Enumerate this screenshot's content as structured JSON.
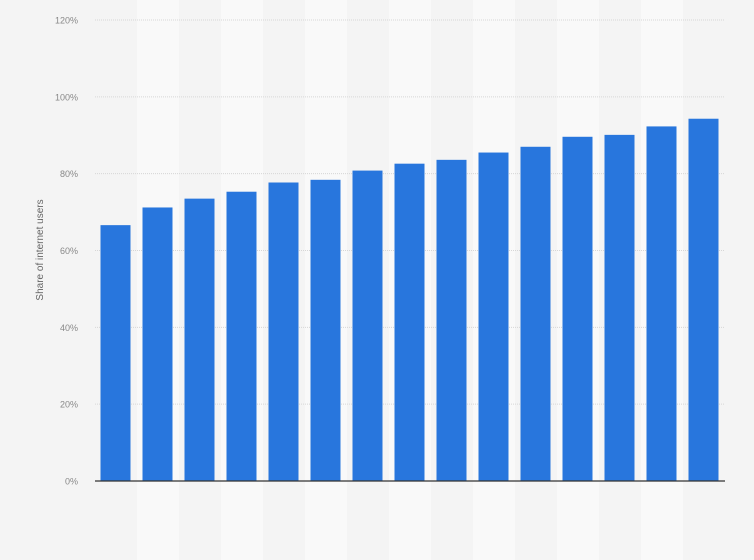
{
  "chart_data": {
    "type": "bar",
    "title": "",
    "xlabel": "",
    "ylabel": "Share of internet users",
    "categories": [
      "",
      "",
      "",
      "",
      "",
      "",
      "",
      "",
      "",
      "",
      "",
      "",
      "",
      "",
      ""
    ],
    "values": [
      66.6,
      71.2,
      73.5,
      75.3,
      77.7,
      78.4,
      80.8,
      82.6,
      83.6,
      85.5,
      87.0,
      89.6,
      90.1,
      92.3,
      94.3
    ],
    "ylim": [
      0,
      120
    ],
    "yticks": [
      0,
      20,
      40,
      60,
      80,
      100,
      120
    ],
    "ytick_labels": [
      "0%",
      "20%",
      "40%",
      "60%",
      "80%",
      "100%",
      "120%"
    ],
    "grid": true,
    "colors": {
      "bar": "#2876dd",
      "background": "#f4f4f4",
      "band": "#f9f9f9"
    }
  }
}
